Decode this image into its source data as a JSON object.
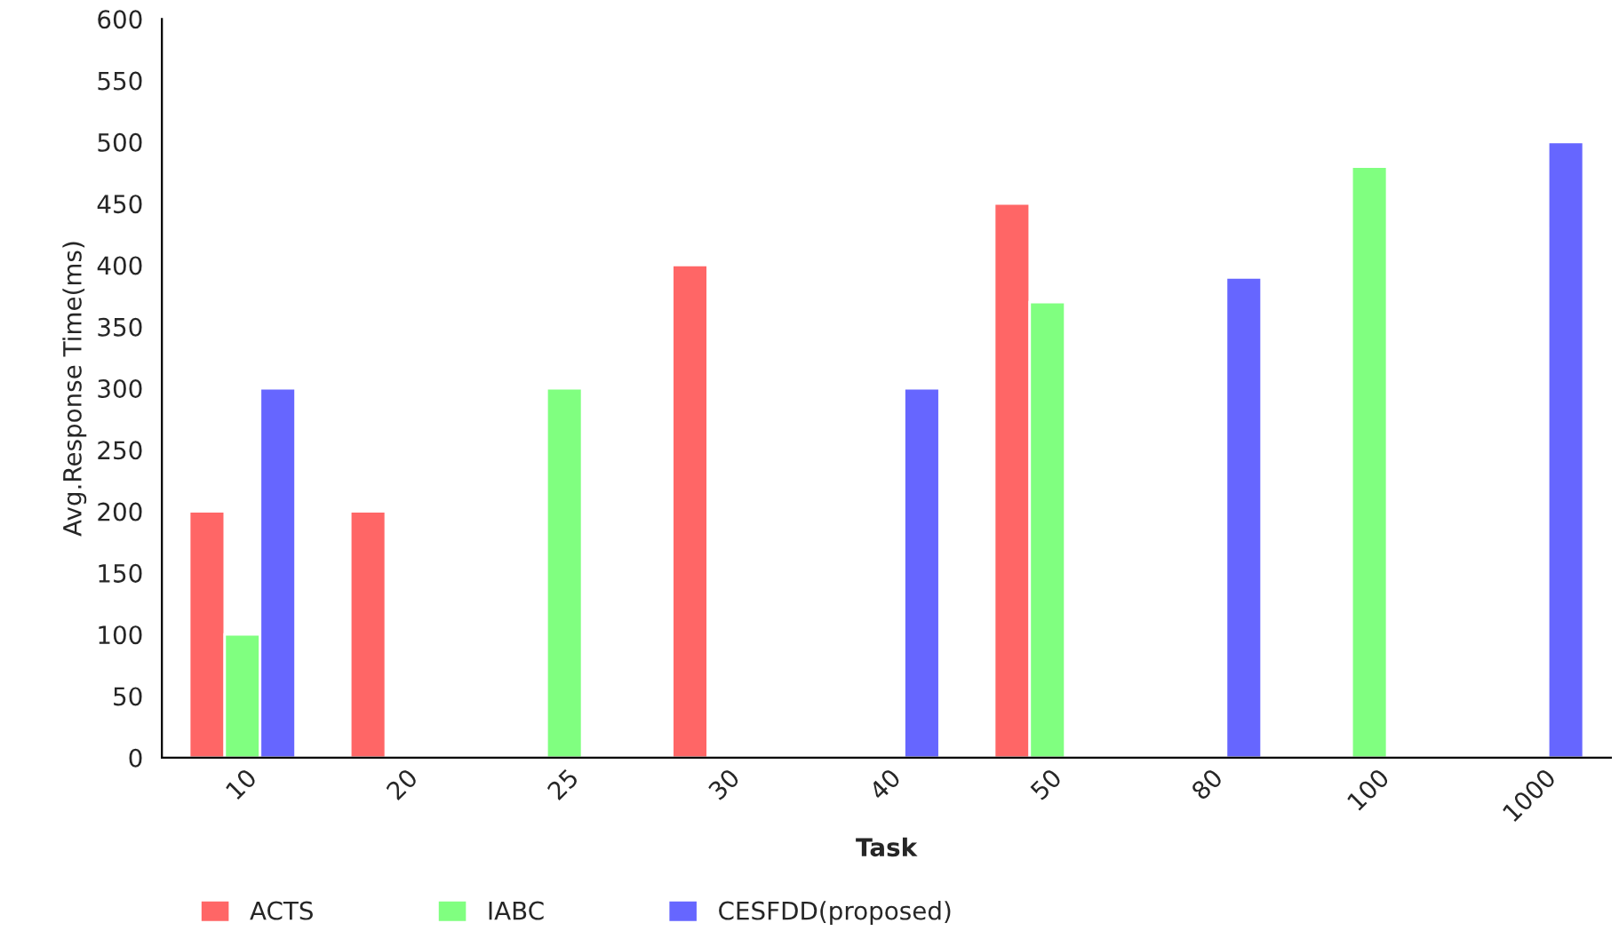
{
  "chart_data": {
    "type": "bar",
    "xlabel": "Task",
    "ylabel": "Avg.Response Time(ms)",
    "categories": [
      "10",
      "20",
      "25",
      "30",
      "40",
      "50",
      "80",
      "100",
      "1000"
    ],
    "series": [
      {
        "name": "ACTS",
        "color": "#ff6666",
        "values": [
          200,
          200,
          null,
          400,
          null,
          450,
          null,
          null,
          null
        ]
      },
      {
        "name": "IABC",
        "color": "#80ff80",
        "values": [
          100,
          null,
          300,
          null,
          null,
          370,
          null,
          480,
          null
        ]
      },
      {
        "name": "CESFDD(proposed)",
        "color": "#6666ff",
        "values": [
          300,
          null,
          null,
          null,
          300,
          null,
          390,
          null,
          500
        ]
      }
    ],
    "ylim": [
      0,
      600
    ],
    "yticks": [
      0,
      50,
      100,
      150,
      200,
      250,
      300,
      350,
      400,
      450,
      500,
      550,
      600
    ],
    "grid": false,
    "legend": "bottom"
  }
}
